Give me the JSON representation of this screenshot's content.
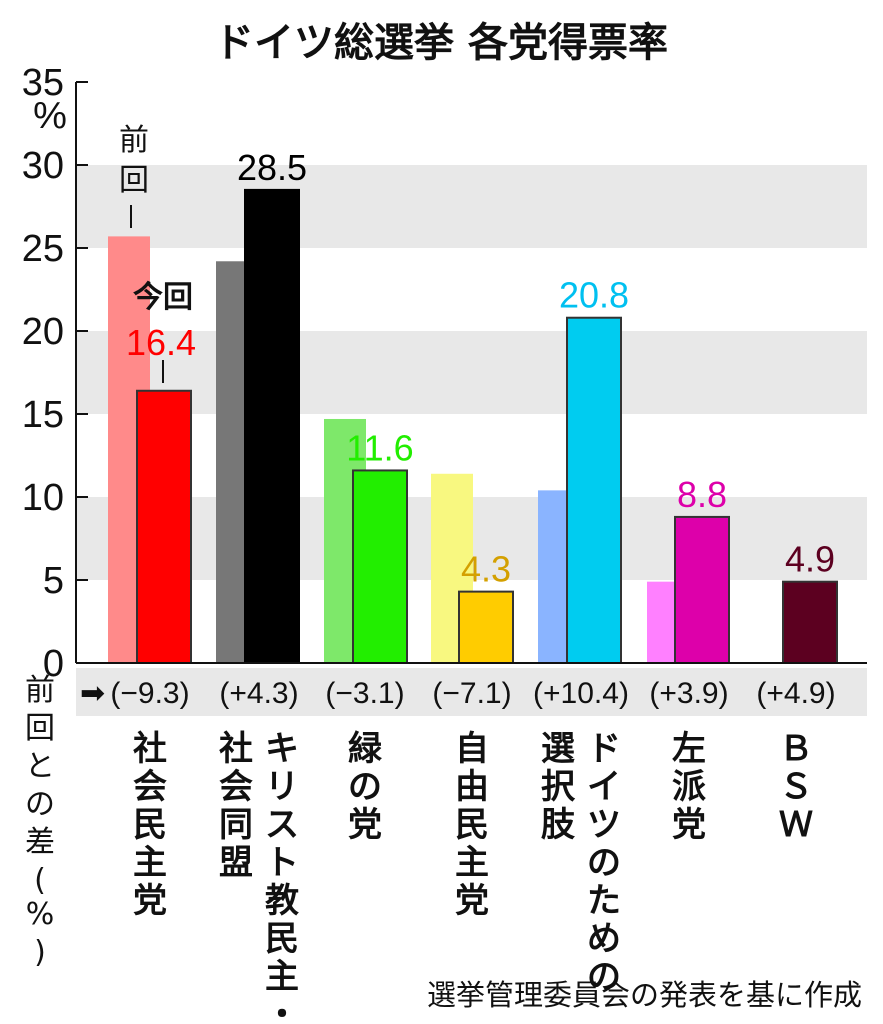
{
  "title": "ドイツ総選挙 各党得票率",
  "source_note": "選挙管理委員会の発表を基に作成",
  "y_unit": "%",
  "diff_row_label": "前回との差(%)",
  "legend_prev": "前回",
  "legend_current": "今回",
  "chart_data": {
    "type": "bar",
    "title": "ドイツ総選挙 各党得票率",
    "ylabel": "%",
    "ylim": [
      0,
      35
    ],
    "yticks": [
      0,
      5,
      10,
      15,
      20,
      25,
      30,
      35
    ],
    "grid": "alternating horizontal bands",
    "categories": [
      {
        "lines": [
          "社会民主党"
        ]
      },
      {
        "lines": [
          "社会同盟",
          "キリスト教民主・"
        ]
      },
      {
        "lines": [
          "緑の党"
        ]
      },
      {
        "lines": [
          "自由民主党"
        ]
      },
      {
        "lines": [
          "選択肢",
          "ドイツのための"
        ]
      },
      {
        "lines": [
          "左派党"
        ]
      },
      {
        "lines": [
          "ＢＳＷ"
        ]
      }
    ],
    "series": [
      {
        "name": "前回",
        "values": [
          25.7,
          24.2,
          14.7,
          11.4,
          10.4,
          4.9,
          0
        ]
      },
      {
        "name": "今回",
        "values": [
          16.4,
          28.5,
          11.6,
          4.3,
          20.8,
          8.8,
          4.9
        ]
      }
    ],
    "value_labels": [
      "16.4",
      "28.5",
      "11.6",
      "4.3",
      "20.8",
      "8.8",
      "4.9"
    ],
    "diff_labels": [
      "(−9.3)",
      "(+4.3)",
      "(−3.1)",
      "(−7.1)",
      "(+10.4)",
      "(+3.9)",
      "(+4.9)"
    ],
    "colors_current": [
      "#ff0000",
      "#000000",
      "#22ee00",
      "#ffcc00",
      "#00ccf0",
      "#dd00aa",
      "#5c0020"
    ],
    "colors_prev": [
      "#ff8a8a",
      "#777777",
      "#7ee86a",
      "#f8f880",
      "#8ab4ff",
      "#ff80ff",
      "#ffffff"
    ],
    "label_colors": [
      "#ff0000",
      "#000000",
      "#22ee00",
      "#d4a000",
      "#00c0f0",
      "#dd00aa",
      "#5c0020"
    ]
  }
}
